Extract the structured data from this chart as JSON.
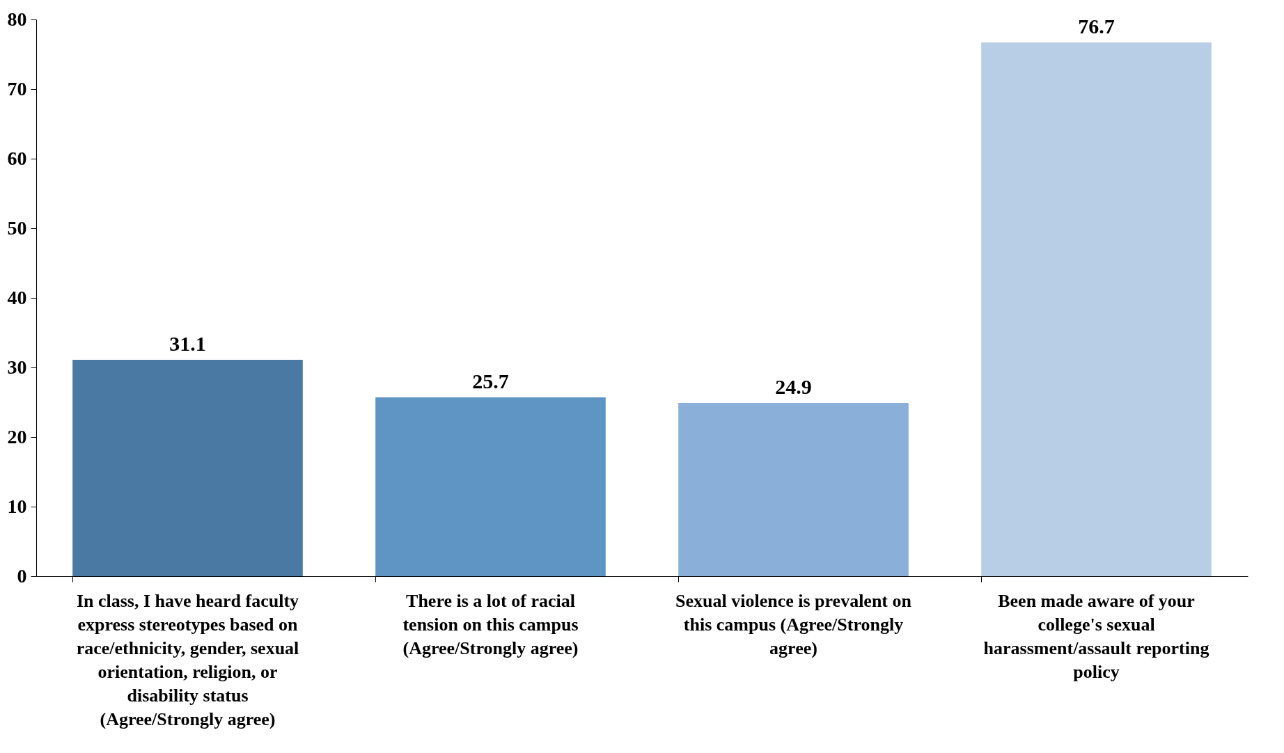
{
  "chart_data": {
    "type": "bar",
    "categories": [
      "In class, I have heard faculty express stereotypes based on race/ethnicity, gender, sexual orientation, religion, or disability status (Agree/Strongly agree)",
      "There is a lot of racial tension on this campus (Agree/Strongly agree)",
      "Sexual violence is prevalent on this campus (Agree/Strongly agree)",
      "Been made aware of your college's sexual harassment/assault reporting policy"
    ],
    "values": [
      31.1,
      25.7,
      24.9,
      76.7
    ],
    "colors": [
      "#4a79a3",
      "#5e95c4",
      "#8aafd9",
      "#b8cde6"
    ],
    "ylim": [
      0,
      80
    ],
    "yticks": [
      0,
      10,
      20,
      30,
      40,
      50,
      60,
      70,
      80
    ],
    "data_labels": true
  }
}
